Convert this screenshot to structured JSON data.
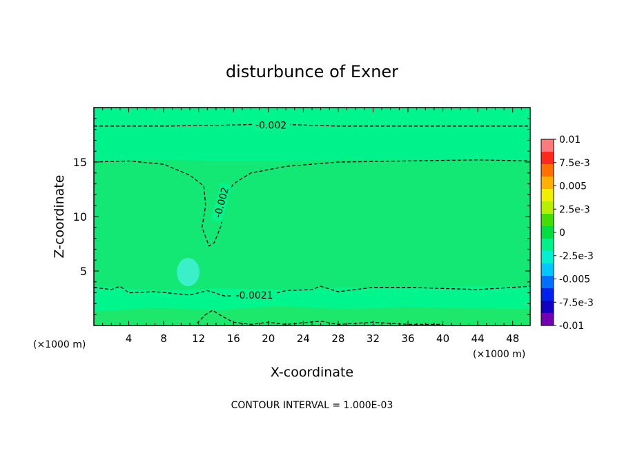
{
  "chart_data": {
    "type": "heatmap",
    "title": "disturbunce of Exner",
    "xlabel": "X-coordinate",
    "ylabel": "Z-coordinate",
    "x_unit": "(×1000 m)",
    "x_unit_right": "(×1000 m)",
    "footer": "CONTOUR INTERVAL = 1.000E-03",
    "xlim": [
      0,
      50
    ],
    "ylim": [
      0,
      20
    ],
    "x_ticks": [
      4,
      8,
      12,
      16,
      20,
      24,
      28,
      32,
      36,
      40,
      44,
      48
    ],
    "y_ticks": [
      5,
      10,
      15
    ],
    "background_color": "#00f58c",
    "colorbar": {
      "range": [
        -0.01,
        0.01
      ],
      "labels": [
        "0.01",
        "7.5e-3",
        "0.005",
        "2.5e-3",
        "0",
        "-2.5e-3",
        "-0.005",
        "-7.5e-3",
        "-0.01"
      ],
      "colors": [
        "#ff7a7a",
        "#ff2a1a",
        "#ff7000",
        "#ffb000",
        "#f0f000",
        "#b8ee00",
        "#44dd00",
        "#00dd40",
        "#00f08c",
        "#00f0d0",
        "#00c8ff",
        "#0070ff",
        "#0020f0",
        "#1000c0",
        "#7000b0"
      ]
    },
    "bands": [
      {
        "level": -0.0022,
        "color": "#00f28a",
        "z_top": [
          18.4,
          18.5,
          18.6,
          18.6,
          18.5,
          18.4,
          18.4,
          18.4
        ]
      },
      {
        "level": -0.0021,
        "color": "#14e874",
        "z_top": [
          15.1,
          15.2,
          15.1,
          15.1,
          15.2,
          15.2,
          15.2,
          15.2
        ]
      },
      {
        "level": -0.0021,
        "color": "#00f58c",
        "z_top": [
          3.6,
          3.2,
          3.4,
          3.3,
          3.5,
          3.4,
          3.6,
          3.6
        ]
      },
      {
        "level": -0.0019,
        "color": "#1ee86c",
        "z_top": [
          1.3,
          1.6,
          1.4,
          1.8,
          1.5,
          1.7,
          1.6,
          1.5
        ]
      }
    ],
    "anomaly": {
      "x": 10.8,
      "z": 4.9,
      "radius": 1.3,
      "color": "#3af0c8"
    },
    "contours": [
      {
        "label": "-0.002",
        "label_at": [
          20.3,
          18.4
        ],
        "points": [
          [
            0,
            18.3
          ],
          [
            8,
            18.3
          ],
          [
            16,
            18.4
          ],
          [
            20,
            18.5
          ],
          [
            28,
            18.3
          ],
          [
            36,
            18.3
          ],
          [
            44,
            18.3
          ],
          [
            50,
            18.3
          ]
        ]
      },
      {
        "label": "-0.002",
        "label_at": [
          14.6,
          11.3
        ],
        "label_rotate": -75,
        "points": [
          [
            0,
            15.0
          ],
          [
            4,
            15.1
          ],
          [
            8,
            14.8
          ],
          [
            11,
            13.8
          ],
          [
            12.6,
            12.8
          ],
          [
            12.8,
            11.0
          ],
          [
            12.4,
            9.0
          ],
          [
            13.2,
            7.3
          ],
          [
            13.8,
            7.6
          ],
          [
            14.6,
            9.2
          ],
          [
            15.0,
            11.8
          ],
          [
            16,
            13.0
          ],
          [
            18,
            14.0
          ],
          [
            22,
            14.6
          ],
          [
            28,
            15.0
          ],
          [
            36,
            15.1
          ],
          [
            44,
            15.2
          ],
          [
            50,
            15.1
          ]
        ]
      },
      {
        "label": "-0.0021",
        "label_at": [
          18.4,
          2.8
        ],
        "points": [
          [
            0,
            3.5
          ],
          [
            2,
            3.3
          ],
          [
            3,
            3.6
          ],
          [
            4,
            3.0
          ],
          [
            7,
            3.1
          ],
          [
            11,
            2.8
          ],
          [
            13,
            3.2
          ],
          [
            15,
            2.7
          ],
          [
            20,
            2.8
          ],
          [
            22,
            3.2
          ],
          [
            25,
            3.3
          ],
          [
            26,
            3.6
          ],
          [
            28,
            3.1
          ],
          [
            32,
            3.5
          ],
          [
            36,
            3.5
          ],
          [
            40,
            3.4
          ],
          [
            44,
            3.3
          ],
          [
            48,
            3.5
          ],
          [
            50,
            3.6
          ]
        ]
      },
      {
        "points": [
          [
            11.8,
            0.2
          ],
          [
            12.8,
            1.0
          ],
          [
            13.6,
            1.4
          ],
          [
            14.6,
            0.9
          ],
          [
            16,
            0.3
          ],
          [
            18,
            0.1
          ],
          [
            20,
            0.3
          ],
          [
            22,
            0.1
          ],
          [
            26,
            0.4
          ],
          [
            28,
            0.1
          ],
          [
            32,
            0.3
          ],
          [
            36,
            0.1
          ],
          [
            40,
            0.1
          ]
        ]
      }
    ]
  }
}
